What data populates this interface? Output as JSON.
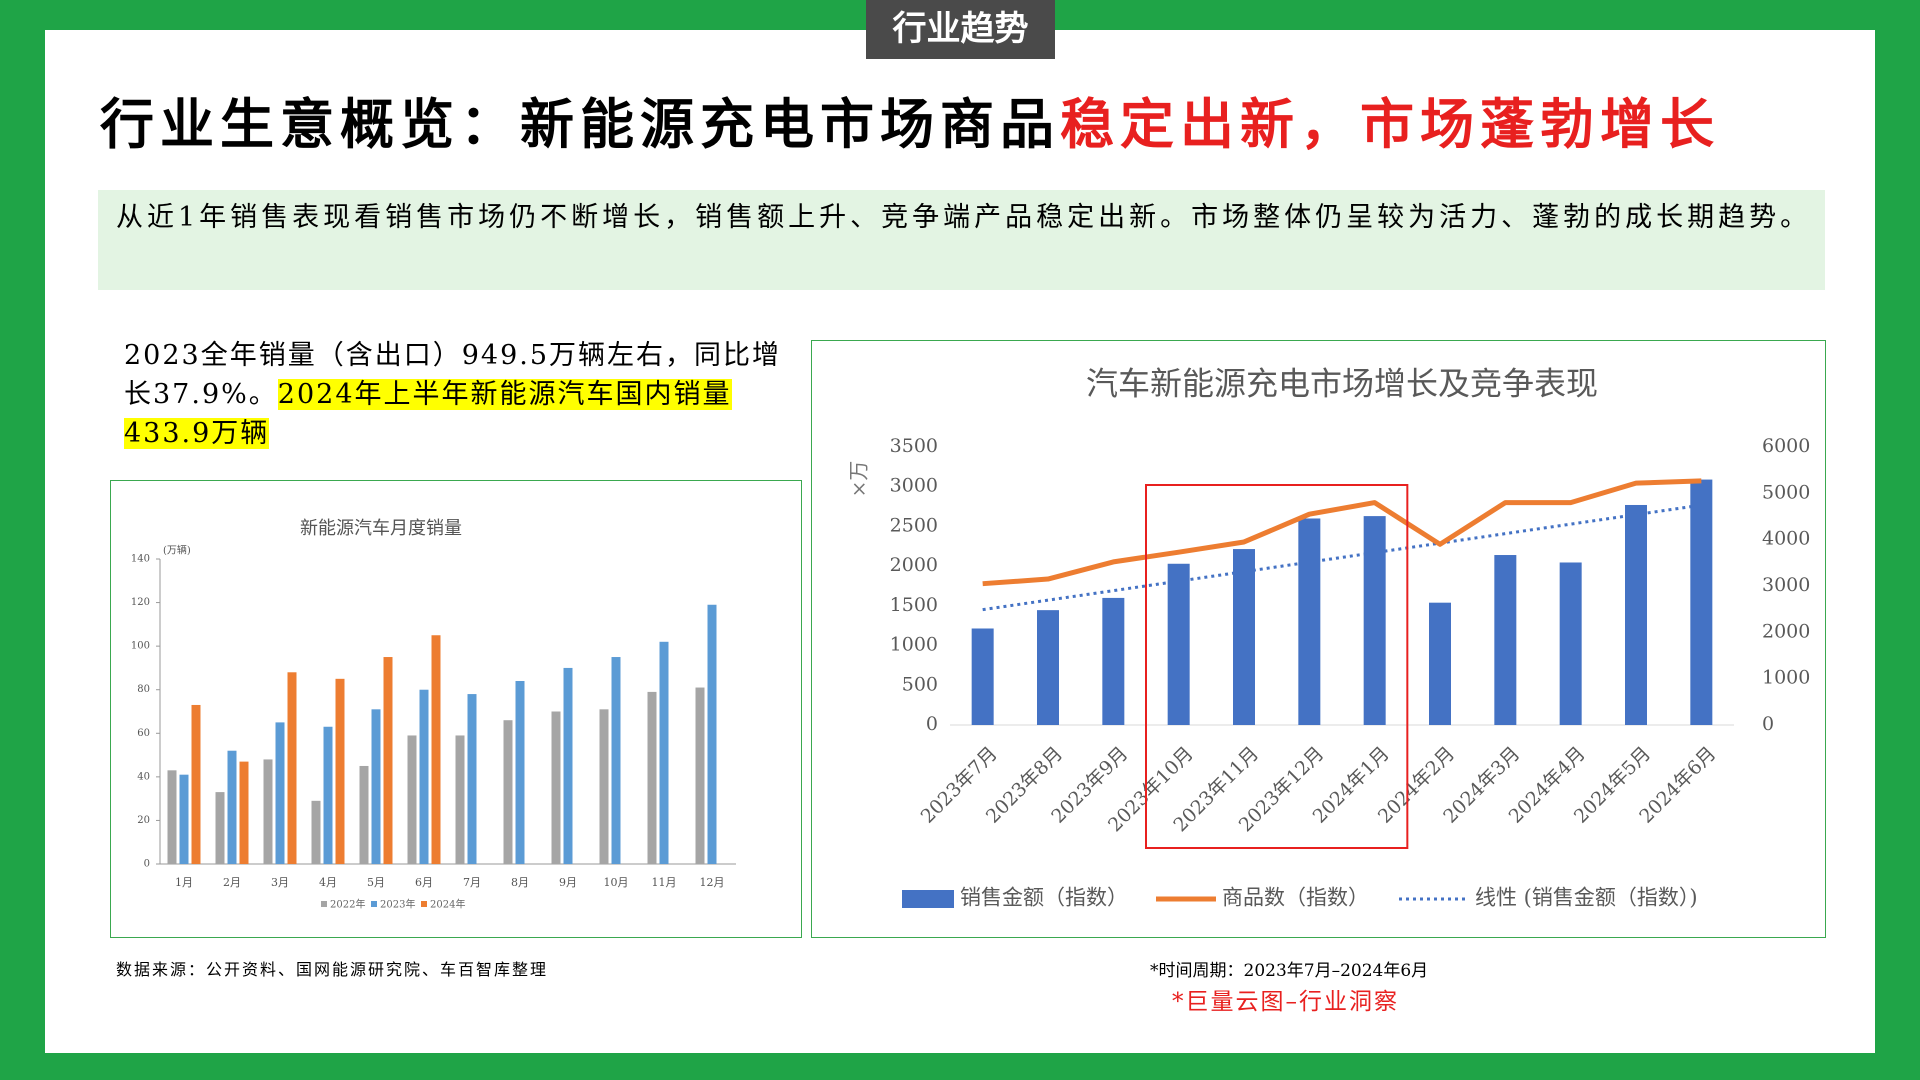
{
  "header": {
    "tag": "行业趋势",
    "title": "行业生意概览：新能源充电市场商品",
    "title_highlight": "稳定出新，市场蓬勃增长"
  },
  "summary": "从近1年销售表现看销售市场仍不断增长，销售额上升、竞争端产品稳定出新。市场整体仍呈较为活力、蓬勃的成长期趋势。",
  "note": {
    "text": "2023全年销量（含出口）949.5万辆左右，同比增长37.9%。",
    "highlight": "2024年上半年新能源汽车国内销量433.9万辆"
  },
  "source": "数据来源：公开资料、国网能源研究院、车百智库整理",
  "period": "*时间周期：2023年7月–2024年6月",
  "brand": "*巨量云图–行业洞察",
  "chart_data": [
    {
      "type": "bar",
      "title": "新能源汽车月度销量",
      "y_label": "(万辆)",
      "categories": [
        "1月",
        "2月",
        "3月",
        "4月",
        "5月",
        "6月",
        "7月",
        "8月",
        "9月",
        "10月",
        "11月",
        "12月"
      ],
      "series": [
        {
          "name": "2022年",
          "color": "#a5a5a5",
          "values": [
            43,
            33,
            48,
            29,
            45,
            59,
            59,
            66,
            70,
            71,
            79,
            81
          ]
        },
        {
          "name": "2023年",
          "color": "#5b9bd5",
          "values": [
            41,
            52,
            65,
            63,
            71,
            80,
            78,
            84,
            90,
            95,
            102,
            119
          ]
        },
        {
          "name": "2024年",
          "color": "#ed7d31",
          "values": [
            73,
            47,
            88,
            85,
            95,
            105,
            null,
            null,
            null,
            null,
            null,
            null
          ]
        }
      ],
      "ylim": [
        0,
        140
      ],
      "yticks": [
        0,
        20,
        40,
        60,
        80,
        100,
        120,
        140
      ],
      "grid": false,
      "legend": "bottom"
    },
    {
      "type": "combo",
      "title": "汽车新能源充电市场增长及竞争表现",
      "y_label": "×万",
      "categories": [
        "2023年7月",
        "2023年8月",
        "2023年9月",
        "2023年10月",
        "2023年11月",
        "2023年12月",
        "2024年1月",
        "2024年2月",
        "2024年3月",
        "2024年4月",
        "2024年5月",
        "2024年6月"
      ],
      "series": [
        {
          "name": "销售金额（指数）",
          "type": "bar",
          "color": "#4472c4",
          "values": [
            1215,
            1446,
            1600,
            2030,
            2215,
            2600,
            2630,
            1540,
            2140,
            2046,
            2770,
            3090
          ]
        },
        {
          "name": "商品数（指数）",
          "type": "line",
          "axis": "y2",
          "color": "#ed7d31",
          "values": [
            3050,
            3150,
            3520,
            3730,
            3950,
            4550,
            4800,
            3900,
            4800,
            4800,
            5220,
            5270
          ]
        }
      ],
      "trendline": {
        "name": "线性 (销售金额（指数）)",
        "color": "#4472c4"
      },
      "ylim": [
        0,
        3500
      ],
      "yticks": [
        0,
        500,
        1000,
        1500,
        2000,
        2500,
        3000,
        3500
      ],
      "y2lim": [
        0,
        6000
      ],
      "y2ticks": [
        0,
        1000,
        2000,
        3000,
        4000,
        5000,
        6000
      ],
      "grid": false,
      "legend": "bottom"
    }
  ]
}
